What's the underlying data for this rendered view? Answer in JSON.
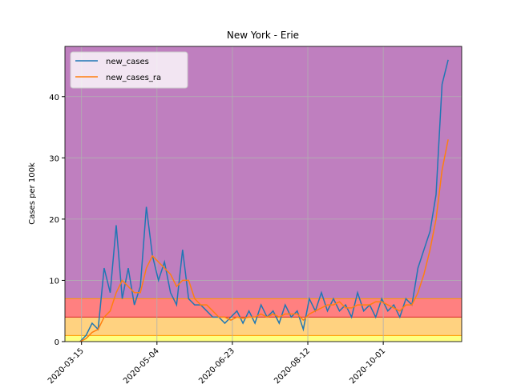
{
  "chart_data": {
    "type": "line",
    "title": "New York - Erie",
    "y_label": "Cases per 100k",
    "x": [
      "2020-03-14",
      "2020-03-18",
      "2020-03-22",
      "2020-03-26",
      "2020-03-30",
      "2020-04-03",
      "2020-04-07",
      "2020-04-11",
      "2020-04-15",
      "2020-04-19",
      "2020-04-23",
      "2020-04-27",
      "2020-05-01",
      "2020-05-05",
      "2020-05-09",
      "2020-05-13",
      "2020-05-17",
      "2020-05-21",
      "2020-05-25",
      "2020-05-29",
      "2020-06-02",
      "2020-06-06",
      "2020-06-10",
      "2020-06-14",
      "2020-06-18",
      "2020-06-22",
      "2020-06-26",
      "2020-06-30",
      "2020-07-04",
      "2020-07-08",
      "2020-07-12",
      "2020-07-16",
      "2020-07-20",
      "2020-07-24",
      "2020-07-28",
      "2020-08-01",
      "2020-08-05",
      "2020-08-09",
      "2020-08-13",
      "2020-08-17",
      "2020-08-21",
      "2020-08-25",
      "2020-08-29",
      "2020-09-02",
      "2020-09-06",
      "2020-09-10",
      "2020-09-14",
      "2020-09-18",
      "2020-09-22",
      "2020-09-26",
      "2020-09-30",
      "2020-10-04",
      "2020-10-08",
      "2020-10-12",
      "2020-10-16",
      "2020-10-20",
      "2020-10-24",
      "2020-10-28",
      "2020-11-01",
      "2020-11-05",
      "2020-11-09",
      "2020-11-13"
    ],
    "series": [
      {
        "name": "new_cases",
        "color": "#1f77b4",
        "values": [
          0,
          1,
          3,
          2,
          12,
          8,
          19,
          7,
          12,
          6,
          9,
          22,
          14,
          10,
          13,
          8,
          6,
          15,
          7,
          6,
          6,
          5,
          4,
          4,
          3,
          4,
          5,
          3,
          5,
          3,
          6,
          4,
          5,
          3,
          6,
          4,
          5,
          2,
          7,
          5,
          8,
          5,
          7,
          5,
          6,
          4,
          8,
          5,
          6,
          4,
          7,
          5,
          6,
          4,
          7,
          6,
          12,
          15,
          18,
          24,
          42,
          46
        ]
      },
      {
        "name": "new_cases_ra",
        "color": "#ff7f0e",
        "values": [
          0,
          0.5,
          1.5,
          2,
          4,
          5,
          8,
          10,
          9,
          8,
          8,
          12,
          14,
          13,
          12,
          11,
          9,
          10,
          10,
          7,
          6,
          6,
          5,
          4,
          4,
          3.5,
          4,
          3.8,
          4,
          4,
          4.5,
          4,
          4.5,
          4,
          4.5,
          4.5,
          4.5,
          3.5,
          4.5,
          5,
          5.5,
          6,
          6,
          6.5,
          5.5,
          5.5,
          6,
          6,
          6,
          6.5,
          6.5,
          6,
          5.5,
          5,
          6,
          6,
          8,
          11,
          15,
          20,
          28,
          33
        ]
      }
    ],
    "bands": [
      {
        "from": 0,
        "to": 1,
        "color": "#ffff80"
      },
      {
        "from": 1,
        "to": 4,
        "color": "#ffd280"
      },
      {
        "from": 4,
        "to": 7,
        "color": "#ff8080"
      },
      {
        "from": 7,
        "to": 48.2,
        "color": "#bf7fbf"
      }
    ],
    "xlim": [
      "2020-03-04",
      "2020-11-22"
    ],
    "xticks": [
      "2020-03-15",
      "2020-05-04",
      "2020-06-23",
      "2020-08-12",
      "2020-10-01"
    ],
    "ylim": [
      0,
      48.2
    ],
    "yticks": [
      0,
      10,
      20,
      30,
      40
    ],
    "grid": true,
    "legend": "upper-left"
  }
}
